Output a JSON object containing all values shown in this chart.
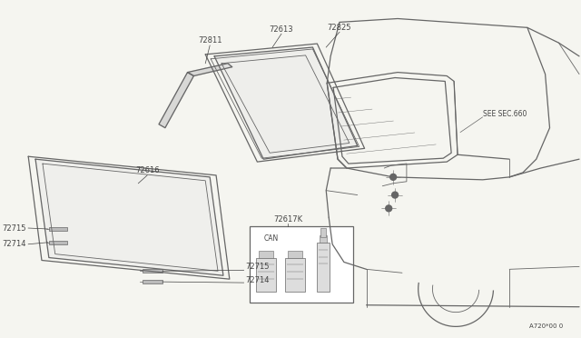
{
  "bg_color": "#f5f5f0",
  "line_color": "#666666",
  "lw_thin": 0.6,
  "lw_med": 0.9,
  "lw_thick": 1.2,
  "fig_width": 6.4,
  "fig_height": 3.72,
  "dpi": 100,
  "fs_label": 6.0,
  "fs_small": 5.0,
  "label_color": "#444444",
  "ref_code": "A720*00 0",
  "see_sec_text": "SEE SEC.660",
  "can_text": "CAN"
}
